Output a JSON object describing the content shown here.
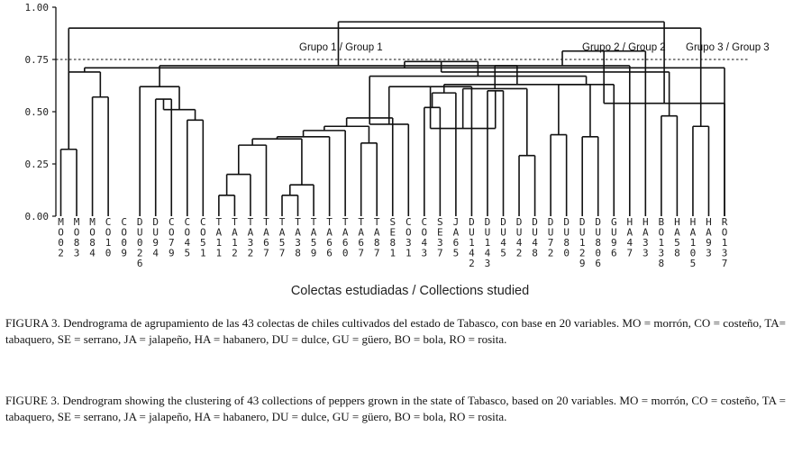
{
  "chart_data": {
    "type": "dendrogram",
    "y_ticks": [
      "1.00",
      "0.75",
      "0.50",
      "0.25",
      "0.00"
    ],
    "ylim": [
      0,
      1
    ],
    "cut_line": 0.75,
    "xlabel": "Colectas estudiadas / Collections studied",
    "group_labels": [
      "Grupo 1 / Group 1",
      "Grupo 2 / Group 2",
      "Grupo 3 / Group 3"
    ],
    "leaves": [
      "MO02",
      "MO83",
      "MO84",
      "CO10",
      "CO09",
      "DU026",
      "DU94",
      "CO79",
      "CO45",
      "CO51",
      "TA11",
      "TA12",
      "TA32",
      "TA67",
      "TA57",
      "TA38",
      "TA59",
      "TA66",
      "TA60",
      "TA67",
      "TA87",
      "SE81",
      "CO31",
      "CO43",
      "SE37",
      "JA65",
      "DU142",
      "DU143",
      "DU45",
      "DU42",
      "DU48",
      "DU72",
      "DU80",
      "DU129",
      "DU806",
      "GU96",
      "HA47",
      "HA33",
      "BO138",
      "HA58",
      "HA105",
      "HA93",
      "RO137"
    ],
    "merges": [
      [
        1,
        2,
        0.32
      ],
      [
        3,
        4,
        0.57
      ],
      [
        44,
        45,
        0.69
      ],
      [
        43,
        46,
        0.71
      ],
      [
        7,
        8,
        0.56
      ],
      [
        9,
        10,
        0.46
      ],
      [
        48,
        49,
        0.51
      ],
      [
        6,
        50,
        0.62
      ],
      [
        11,
        12,
        0.1
      ],
      [
        52,
        13,
        0.2
      ],
      [
        53,
        14,
        0.34
      ],
      [
        15,
        16,
        0.1
      ],
      [
        55,
        17,
        0.15
      ],
      [
        54,
        56,
        0.37
      ],
      [
        57,
        18,
        0.38
      ],
      [
        58,
        19,
        0.41
      ],
      [
        20,
        21,
        0.35
      ],
      [
        59,
        60,
        0.43
      ],
      [
        61,
        22,
        0.47
      ],
      [
        24,
        25,
        0.52
      ],
      [
        23,
        62,
        0.44
      ],
      [
        63,
        26,
        0.59
      ],
      [
        64,
        27,
        0.62
      ],
      [
        28,
        29,
        0.6
      ],
      [
        30,
        31,
        0.29
      ],
      [
        32,
        33,
        0.39
      ],
      [
        66,
        67,
        0.42
      ],
      [
        34,
        35,
        0.38
      ],
      [
        69,
        36,
        0.63
      ],
      [
        68,
        70,
        0.61
      ],
      [
        65,
        71,
        0.63
      ],
      [
        62,
        72,
        0.67
      ],
      [
        73,
        37,
        0.72
      ],
      [
        51,
        74,
        0.72
      ],
      [
        47,
        75,
        0.74
      ],
      [
        76,
        38,
        0.79
      ],
      [
        39,
        40,
        0.48
      ],
      [
        41,
        42,
        0.43
      ],
      [
        79,
        43,
        0.54
      ],
      [
        78,
        80,
        0.69
      ],
      [
        81,
        44,
        0.9
      ],
      [
        77,
        82,
        0.93
      ]
    ]
  },
  "caption_es": {
    "label": "FIGURA 3.",
    "text": "Dendrograma de agrupamiento de las 43 colectas de chiles cultivados del estado de Tabasco, con base en 20 variables. MO = morrón, CO = costeño, TA= tabaquero, SE = serrano, JA = jalapeño, HA = habanero, DU = dulce, GU = güero, BO = bola, RO = rosita."
  },
  "caption_en": {
    "label": "FIGURE 3.",
    "text": "Dendrogram showing the clustering of 43 collections of peppers grown in the state of Tabasco, based on 20 variables. MO = morrón, CO = costeño, TA = tabaquero, SE = serrano, JA = jalapeño, HA = habanero, DU = dulce, GU = güero, BO = bola, RO = rosita."
  }
}
